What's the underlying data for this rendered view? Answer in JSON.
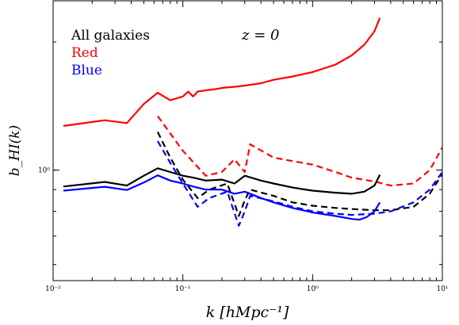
{
  "chart_data": {
    "type": "line",
    "xscale": "log",
    "yscale": "log",
    "xlim": [
      0.01,
      10
    ],
    "ylim": [
      0.55,
      2.5
    ],
    "xlabel": "k [hMpc⁻¹]",
    "ylabel": "b_HI(k)",
    "x_ticks": [
      {
        "value": 0.01,
        "label": "10⁻²"
      },
      {
        "value": 0.1,
        "label": "10⁻¹"
      },
      {
        "value": 1,
        "label": "10⁰"
      },
      {
        "value": 10,
        "label": "10¹"
      }
    ],
    "y_ticks": [
      {
        "value": 1.0,
        "label": "10⁰"
      }
    ],
    "annotation": "z = 0",
    "legend": {
      "position": "top-left",
      "entries": [
        {
          "label": "All galaxies",
          "color": "#000000"
        },
        {
          "label": "Red",
          "color": "#ff0000"
        },
        {
          "label": "Blue",
          "color": "#0000ff"
        }
      ]
    },
    "series": [
      {
        "color": "#ff0000",
        "style": "solid",
        "points": [
          [
            0.012,
            1.27
          ],
          [
            0.025,
            1.31
          ],
          [
            0.037,
            1.29
          ],
          [
            0.05,
            1.43
          ],
          [
            0.064,
            1.52
          ],
          [
            0.08,
            1.46
          ],
          [
            0.1,
            1.49
          ],
          [
            0.11,
            1.53
          ],
          [
            0.12,
            1.49
          ],
          [
            0.13,
            1.53
          ],
          [
            0.15,
            1.54
          ],
          [
            0.18,
            1.55
          ],
          [
            0.2,
            1.56
          ],
          [
            0.25,
            1.57
          ],
          [
            0.3,
            1.58
          ],
          [
            0.4,
            1.6
          ],
          [
            0.5,
            1.63
          ],
          [
            0.7,
            1.66
          ],
          [
            1.0,
            1.7
          ],
          [
            1.5,
            1.77
          ],
          [
            2.0,
            1.86
          ],
          [
            2.5,
            1.97
          ],
          [
            3.0,
            2.12
          ],
          [
            3.3,
            2.28
          ]
        ]
      },
      {
        "color": "#ff0000",
        "style": "dashed",
        "points": [
          [
            0.064,
            1.34
          ],
          [
            0.1,
            1.11
          ],
          [
            0.15,
            0.97
          ],
          [
            0.2,
            0.99
          ],
          [
            0.25,
            1.06
          ],
          [
            0.3,
            0.99
          ],
          [
            0.33,
            1.15
          ],
          [
            0.5,
            1.07
          ],
          [
            0.7,
            1.05
          ],
          [
            1.0,
            1.03
          ],
          [
            1.5,
            0.99
          ],
          [
            2.0,
            0.96
          ],
          [
            3.0,
            0.94
          ],
          [
            4.0,
            0.92
          ],
          [
            6.0,
            0.93
          ],
          [
            8.0,
            1.0
          ],
          [
            10.0,
            1.13
          ]
        ]
      },
      {
        "color": "#000000",
        "style": "solid",
        "points": [
          [
            0.012,
            0.915
          ],
          [
            0.025,
            0.938
          ],
          [
            0.037,
            0.92
          ],
          [
            0.05,
            0.97
          ],
          [
            0.064,
            1.01
          ],
          [
            0.08,
            0.99
          ],
          [
            0.1,
            0.97
          ],
          [
            0.12,
            0.96
          ],
          [
            0.15,
            0.945
          ],
          [
            0.2,
            0.95
          ],
          [
            0.25,
            0.93
          ],
          [
            0.3,
            0.97
          ],
          [
            0.4,
            0.945
          ],
          [
            0.5,
            0.93
          ],
          [
            0.7,
            0.91
          ],
          [
            1.0,
            0.895
          ],
          [
            1.5,
            0.885
          ],
          [
            2.0,
            0.88
          ],
          [
            2.5,
            0.89
          ],
          [
            3.0,
            0.92
          ],
          [
            3.3,
            0.975
          ]
        ]
      },
      {
        "color": "#000000",
        "style": "dashed",
        "points": [
          [
            0.064,
            1.23
          ],
          [
            0.08,
            1.07
          ],
          [
            0.1,
            0.95
          ],
          [
            0.13,
            0.86
          ],
          [
            0.16,
            0.9
          ],
          [
            0.22,
            0.93
          ],
          [
            0.27,
            0.78
          ],
          [
            0.3,
            0.85
          ],
          [
            0.33,
            0.9
          ],
          [
            0.5,
            0.87
          ],
          [
            0.7,
            0.84
          ],
          [
            1.0,
            0.825
          ],
          [
            1.5,
            0.815
          ],
          [
            2.0,
            0.81
          ],
          [
            3.0,
            0.805
          ],
          [
            4.0,
            0.805
          ],
          [
            6.0,
            0.82
          ],
          [
            8.0,
            0.88
          ],
          [
            10.0,
            0.98
          ]
        ]
      },
      {
        "color": "#0000ff",
        "style": "solid",
        "points": [
          [
            0.012,
            0.895
          ],
          [
            0.025,
            0.914
          ],
          [
            0.037,
            0.898
          ],
          [
            0.05,
            0.935
          ],
          [
            0.064,
            0.972
          ],
          [
            0.08,
            0.945
          ],
          [
            0.1,
            0.93
          ],
          [
            0.12,
            0.915
          ],
          [
            0.15,
            0.9
          ],
          [
            0.2,
            0.9
          ],
          [
            0.25,
            0.88
          ],
          [
            0.3,
            0.89
          ],
          [
            0.4,
            0.86
          ],
          [
            0.5,
            0.84
          ],
          [
            0.7,
            0.815
          ],
          [
            1.0,
            0.795
          ],
          [
            1.5,
            0.78
          ],
          [
            2.0,
            0.768
          ],
          [
            2.3,
            0.765
          ],
          [
            2.6,
            0.775
          ],
          [
            3.0,
            0.8
          ],
          [
            3.3,
            0.84
          ]
        ]
      },
      {
        "color": "#0000ff",
        "style": "dashed",
        "points": [
          [
            0.064,
            1.17
          ],
          [
            0.08,
            1.04
          ],
          [
            0.1,
            0.93
          ],
          [
            0.13,
            0.82
          ],
          [
            0.16,
            0.86
          ],
          [
            0.22,
            0.89
          ],
          [
            0.27,
            0.74
          ],
          [
            0.3,
            0.8
          ],
          [
            0.33,
            0.87
          ],
          [
            0.5,
            0.845
          ],
          [
            0.7,
            0.82
          ],
          [
            1.0,
            0.8
          ],
          [
            1.5,
            0.79
          ],
          [
            2.0,
            0.785
          ],
          [
            3.0,
            0.79
          ],
          [
            4.0,
            0.8
          ],
          [
            6.0,
            0.84
          ],
          [
            8.0,
            0.9
          ],
          [
            10.0,
            0.99
          ]
        ]
      }
    ]
  }
}
